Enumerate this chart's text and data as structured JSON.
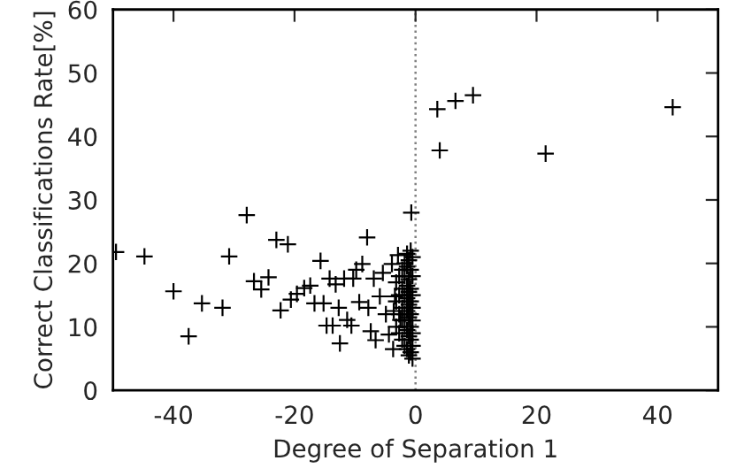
{
  "chart_data": {
    "type": "scatter",
    "xlabel": "Degree of Separation 1",
    "ylabel": "Correct Classifications Rate[%]",
    "series": [
      {
        "color": "#000000",
        "x": [
          -49.5,
          -44.8,
          -40,
          -37.5,
          -35.3,
          -31.9,
          -30.8,
          -27.9,
          -26.7,
          -25.5,
          -24.3,
          -23,
          -21.1,
          -22.3,
          -20.6,
          -19.6,
          -18.4,
          -17.4,
          -16.7,
          -15.7,
          -15.2,
          -14.7,
          -14.2,
          -13.7,
          -13.2,
          -12.7,
          -12.5,
          -11.8,
          -11.3,
          -10.3,
          -9.8,
          -10.6,
          -8.8,
          -8,
          -9.3,
          -7.8,
          -7.4,
          -6.9,
          -6.6,
          -5.9,
          -5.4,
          -4.9,
          -4.4,
          -3.9,
          -3.7,
          -3.4,
          -2.9,
          -2.5,
          -0.7,
          -0.5,
          -0.5,
          -0.5,
          -0.5,
          -0.5,
          -0.5,
          -0.5,
          -0.5,
          -0.8,
          -0.8,
          -0.8,
          -0.8,
          -0.8,
          -0.8,
          -0.8,
          -0.8,
          -1.1,
          -1.1,
          -1.1,
          -1.1,
          -1.1,
          -1.1,
          -1.1,
          -1.4,
          -1.4,
          -1.4,
          -1.4,
          -1.4,
          -1.4,
          -1.4,
          -1.8,
          -1.8,
          -1.8,
          -1.8,
          -1.8,
          -1.8,
          -2.2,
          -2.2,
          -2.2,
          -2.2,
          -2.2,
          -2.7,
          -2.7,
          -2.7,
          -2.7,
          -3.2,
          -3.2,
          -3.2,
          -3.6,
          3.6,
          6.6,
          9.5,
          4,
          21.5,
          42.5
        ],
        "values": [
          21.8,
          21.1,
          15.6,
          8.5,
          13.7,
          13,
          21.1,
          27.6,
          17.2,
          15.9,
          17.8,
          23.7,
          23,
          12.6,
          14.3,
          15.2,
          16.1,
          16.5,
          13.7,
          20.4,
          13.7,
          10.2,
          17.6,
          10.2,
          16.7,
          13,
          7.4,
          17.6,
          11.1,
          17.6,
          19,
          10.2,
          19.9,
          24.1,
          13.9,
          13,
          9.3,
          17.6,
          7.9,
          14.8,
          18.5,
          12,
          8.8,
          19.9,
          6.5,
          14.8,
          21.3,
          11.1,
          28,
          5,
          7,
          9,
          11,
          13,
          15,
          18,
          21,
          6,
          8,
          10,
          12,
          14,
          16,
          19,
          22,
          5.5,
          8.5,
          11.5,
          13.5,
          15.5,
          17.5,
          20.5,
          6.5,
          9.5,
          12.5,
          14.5,
          16.5,
          19.5,
          21.5,
          7,
          10,
          12,
          15,
          18,
          20,
          8,
          11,
          13,
          16,
          19,
          9,
          12,
          15,
          18,
          10,
          14,
          17,
          12.5,
          44.3,
          45.6,
          46.5,
          37.8,
          37.3,
          44.6
        ]
      }
    ],
    "xlim": [
      -50,
      50
    ],
    "xticks": [
      -40,
      -20,
      0,
      20,
      40
    ],
    "ylim": [
      0,
      60
    ],
    "yticks": [
      0,
      10,
      20,
      30,
      40,
      50,
      60
    ],
    "marker": "cross",
    "grid": false,
    "legend": false,
    "ref_lines": [
      {
        "axis": "x",
        "value": 0,
        "color": "#808080",
        "line_style": "dotted"
      }
    ]
  }
}
